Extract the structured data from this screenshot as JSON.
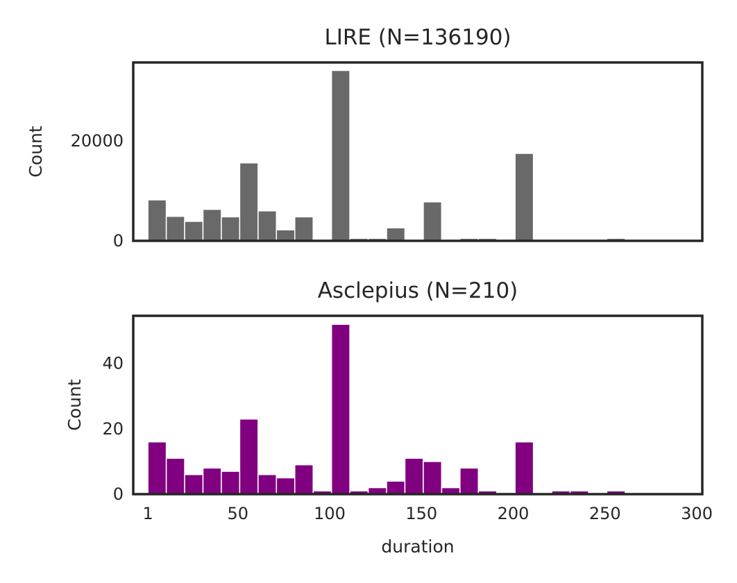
{
  "chart_data": [
    {
      "type": "bar",
      "title": "LIRE (N=136190)",
      "xlabel": "",
      "ylabel": "Count",
      "bar_color": "#696969",
      "bin_width": 10,
      "bins": [
        [
          1,
          11
        ],
        [
          11,
          21
        ],
        [
          21,
          31
        ],
        [
          31,
          41
        ],
        [
          41,
          51
        ],
        [
          51,
          61
        ],
        [
          61,
          71
        ],
        [
          71,
          81
        ],
        [
          81,
          91
        ],
        [
          91,
          101
        ],
        [
          101,
          111
        ],
        [
          111,
          121
        ],
        [
          121,
          131
        ],
        [
          131,
          141
        ],
        [
          141,
          151
        ],
        [
          151,
          161
        ],
        [
          161,
          171
        ],
        [
          171,
          181
        ],
        [
          181,
          191
        ],
        [
          191,
          201
        ],
        [
          201,
          211
        ],
        [
          211,
          221
        ],
        [
          221,
          231
        ],
        [
          231,
          241
        ],
        [
          241,
          251
        ],
        [
          251,
          261
        ],
        [
          261,
          271
        ],
        [
          271,
          281
        ],
        [
          281,
          291
        ],
        [
          291,
          301
        ]
      ],
      "values": [
        8200,
        4900,
        3900,
        6300,
        4800,
        15600,
        6000,
        2200,
        4800,
        0,
        34100,
        500,
        500,
        2600,
        0,
        7800,
        0,
        500,
        500,
        0,
        17500,
        100,
        100,
        300,
        100,
        500,
        100,
        100,
        100,
        100
      ],
      "ylim": [
        0,
        35700
      ],
      "yticks": [
        0,
        20000
      ],
      "xlim": [
        -7,
        303
      ],
      "xticks": [],
      "grid": false,
      "legend": "none"
    },
    {
      "type": "bar",
      "title": "Asclepius (N=210)",
      "xlabel": "duration",
      "ylabel": "Count",
      "bar_color": "#800080",
      "bin_width": 10,
      "bins": [
        [
          1,
          11
        ],
        [
          11,
          21
        ],
        [
          21,
          31
        ],
        [
          31,
          41
        ],
        [
          41,
          51
        ],
        [
          51,
          61
        ],
        [
          61,
          71
        ],
        [
          71,
          81
        ],
        [
          81,
          91
        ],
        [
          91,
          101
        ],
        [
          101,
          111
        ],
        [
          111,
          121
        ],
        [
          121,
          131
        ],
        [
          131,
          141
        ],
        [
          141,
          151
        ],
        [
          151,
          161
        ],
        [
          161,
          171
        ],
        [
          171,
          181
        ],
        [
          181,
          191
        ],
        [
          191,
          201
        ],
        [
          201,
          211
        ],
        [
          211,
          221
        ],
        [
          221,
          231
        ],
        [
          231,
          241
        ],
        [
          241,
          251
        ],
        [
          251,
          261
        ],
        [
          261,
          271
        ],
        [
          271,
          281
        ],
        [
          281,
          291
        ],
        [
          291,
          301
        ]
      ],
      "values": [
        16,
        11,
        6,
        8,
        7,
        23,
        6,
        5,
        9,
        1,
        52,
        1,
        2,
        4,
        11,
        10,
        2,
        8,
        1,
        0,
        16,
        0,
        1,
        1,
        0,
        1,
        0,
        0,
        0,
        0
      ],
      "ylim": [
        0,
        54.6
      ],
      "yticks": [
        0,
        20,
        40
      ],
      "xlim": [
        -7,
        303
      ],
      "xticks": [
        1,
        50,
        100,
        150,
        200,
        250,
        300
      ],
      "xtick_labels": [
        "1",
        "50",
        "100",
        "150",
        "200",
        "250",
        "300"
      ],
      "grid": false,
      "legend": "none"
    }
  ]
}
